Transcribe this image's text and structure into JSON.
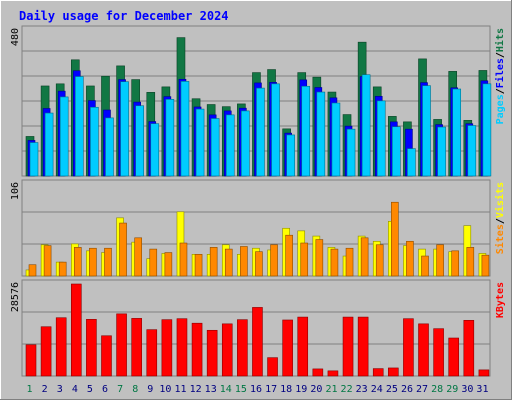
{
  "colors": {
    "background": "#c0c0c0",
    "border_light": "#ffffff",
    "border_dark": "#808080",
    "title": "#0000ff",
    "hits": "#117744",
    "files": "#0000ff",
    "pages": "#00ccff",
    "visits": "#ffff00",
    "sites": "#ff8800",
    "kbytes": "#ff0000",
    "weekend_day": "#007744",
    "weekday": "#000080"
  },
  "chart_data": {
    "type": "bar",
    "title": "Daily usage for December 2024",
    "categories": [
      "1",
      "2",
      "3",
      "4",
      "5",
      "6",
      "7",
      "8",
      "9",
      "10",
      "11",
      "12",
      "13",
      "14",
      "15",
      "16",
      "17",
      "18",
      "19",
      "20",
      "21",
      "22",
      "23",
      "24",
      "25",
      "26",
      "27",
      "28",
      "29",
      "30",
      "31"
    ],
    "weekend_days": [
      "1",
      "7",
      "8",
      "14",
      "15",
      "21",
      "22",
      "28",
      "29"
    ],
    "panels": [
      {
        "id": "top",
        "ymax_label": "480",
        "ylim": [
          0,
          480
        ],
        "side_legend": [
          "Pages",
          "Files",
          "Hits"
        ],
        "series": [
          {
            "name": "Hits",
            "values": [
              130,
              296,
              303,
              382,
              296,
              328,
              362,
              317,
              275,
              293,
              455,
              254,
              235,
              228,
              237,
              340,
              350,
              155,
              340,
              325,
              276,
              202,
              440,
              293,
              196,
              178,
              385,
              186,
              344,
              183,
              347
            ]
          },
          {
            "name": "Files",
            "values": [
              117,
              222,
              279,
              346,
              248,
              217,
              317,
              243,
              179,
              261,
              318,
              227,
              201,
              214,
              223,
              306,
              308,
              141,
              316,
              291,
              257,
              164,
              327,
              262,
              178,
              154,
              307,
              169,
              290,
              172,
              313
            ]
          },
          {
            "name": "Pages",
            "values": [
              110,
              207,
              260,
              327,
              226,
              191,
              310,
              231,
              172,
              252,
              311,
              220,
              189,
              201,
              214,
              289,
              303,
              135,
              295,
              276,
              240,
              154,
              333,
              247,
              162,
              90,
              297,
              161,
              286,
              166,
              303
            ]
          }
        ]
      },
      {
        "id": "middle",
        "ymax_label": "106",
        "ylim": [
          0,
          106
        ],
        "side_legend": [
          "Sites",
          "Visits"
        ],
        "series": [
          {
            "name": "Visits",
            "values": [
              7,
              36,
              16,
              37,
              29,
              27,
              67,
              39,
              20,
              26,
              74,
              25,
              25,
              36,
              25,
              32,
              30,
              55,
              52,
              46,
              33,
              23,
              46,
              40,
              63,
              35,
              31,
              31,
              28,
              58,
              26
            ]
          },
          {
            "name": "Sites",
            "values": [
              13,
              35,
              16,
              33,
              32,
              32,
              61,
              44,
              31,
              27,
              38,
              25,
              33,
              31,
              34,
              28,
              36,
              47,
              38,
              42,
              31,
              32,
              44,
              36,
              85,
              40,
              23,
              36,
              29,
              33,
              24
            ]
          }
        ]
      },
      {
        "id": "bottom",
        "ymax_label": "28576",
        "ylim": [
          0,
          28576
        ],
        "side_legend": [
          "KBytes"
        ],
        "series": [
          {
            "name": "KBytes",
            "values": [
              9700,
              15300,
              18100,
              28576,
              17600,
              12500,
              19300,
              17900,
              14400,
              17500,
              17800,
              16400,
              14200,
              16200,
              17500,
              21300,
              5700,
              17400,
              18300,
              2200,
              1600,
              18300,
              18300,
              2300,
              2500,
              17800,
              16200,
              14700,
              11800,
              17300,
              1900
            ]
          }
        ]
      }
    ]
  }
}
